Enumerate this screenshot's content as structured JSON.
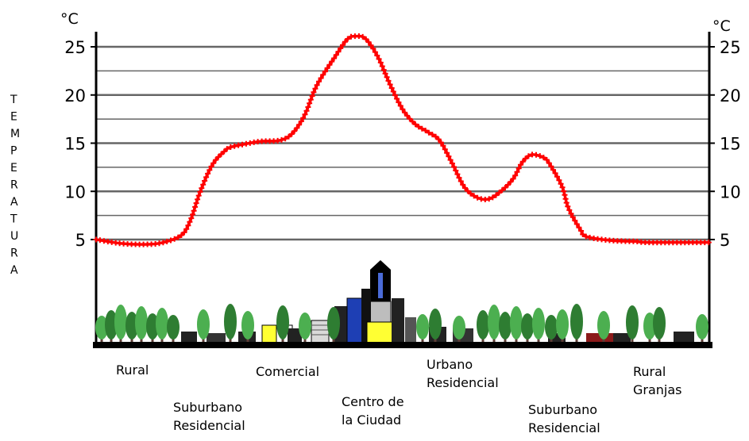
{
  "chart_data": {
    "type": "line",
    "title": "",
    "unit_left": "°C",
    "unit_right": "°C",
    "ylabel": "TEMPERATURA",
    "ylim": [
      0,
      27
    ],
    "yticks": [
      5,
      10,
      15,
      20,
      25
    ],
    "grid": true,
    "zones": [
      {
        "lines": [
          "Rural"
        ]
      },
      {
        "lines": [
          "Suburbano",
          "Residencial"
        ]
      },
      {
        "lines": [
          "Comercial"
        ]
      },
      {
        "lines": [
          "Centro de",
          "la Ciudad"
        ]
      },
      {
        "lines": [
          "Urbano",
          "Residencial"
        ]
      },
      {
        "lines": [
          "Suburbano",
          "Residencial"
        ]
      },
      {
        "lines": [
          "Rural",
          "Granjas"
        ]
      }
    ],
    "series": [
      {
        "color": "#ff0000",
        "x": [
          0,
          4,
          8,
          11,
          14,
          15.5,
          17,
          19,
          21,
          22,
          25,
          27,
          30,
          32,
          34,
          36,
          39,
          41,
          42.5,
          44,
          46,
          48,
          50,
          52,
          54,
          56,
          58,
          60,
          62,
          64,
          66,
          68,
          69.5,
          71,
          73,
          74,
          76,
          77,
          79,
          80,
          84,
          88,
          90,
          100
        ],
        "y": [
          5.0,
          4.6,
          4.5,
          4.7,
          5.5,
          7.2,
          10.0,
          12.8,
          14.2,
          14.6,
          15.0,
          15.2,
          15.3,
          16.0,
          17.9,
          21.0,
          24.0,
          25.8,
          26.1,
          25.8,
          23.9,
          21.0,
          18.5,
          17.0,
          16.2,
          15.3,
          13.0,
          10.5,
          9.4,
          9.2,
          10.0,
          11.3,
          13.0,
          13.8,
          13.5,
          12.8,
          10.5,
          8.3,
          6.0,
          5.3,
          4.9,
          4.8,
          4.7,
          4.7
        ]
      }
    ]
  },
  "colors": {
    "line": "#ff0000",
    "gridline": "#666666",
    "tree_dark": "#2e7d32",
    "tree_light": "#4caf50",
    "building_blue": "#1e3fb4",
    "building_yellow": "#ffff33",
    "ground": "#000000"
  }
}
